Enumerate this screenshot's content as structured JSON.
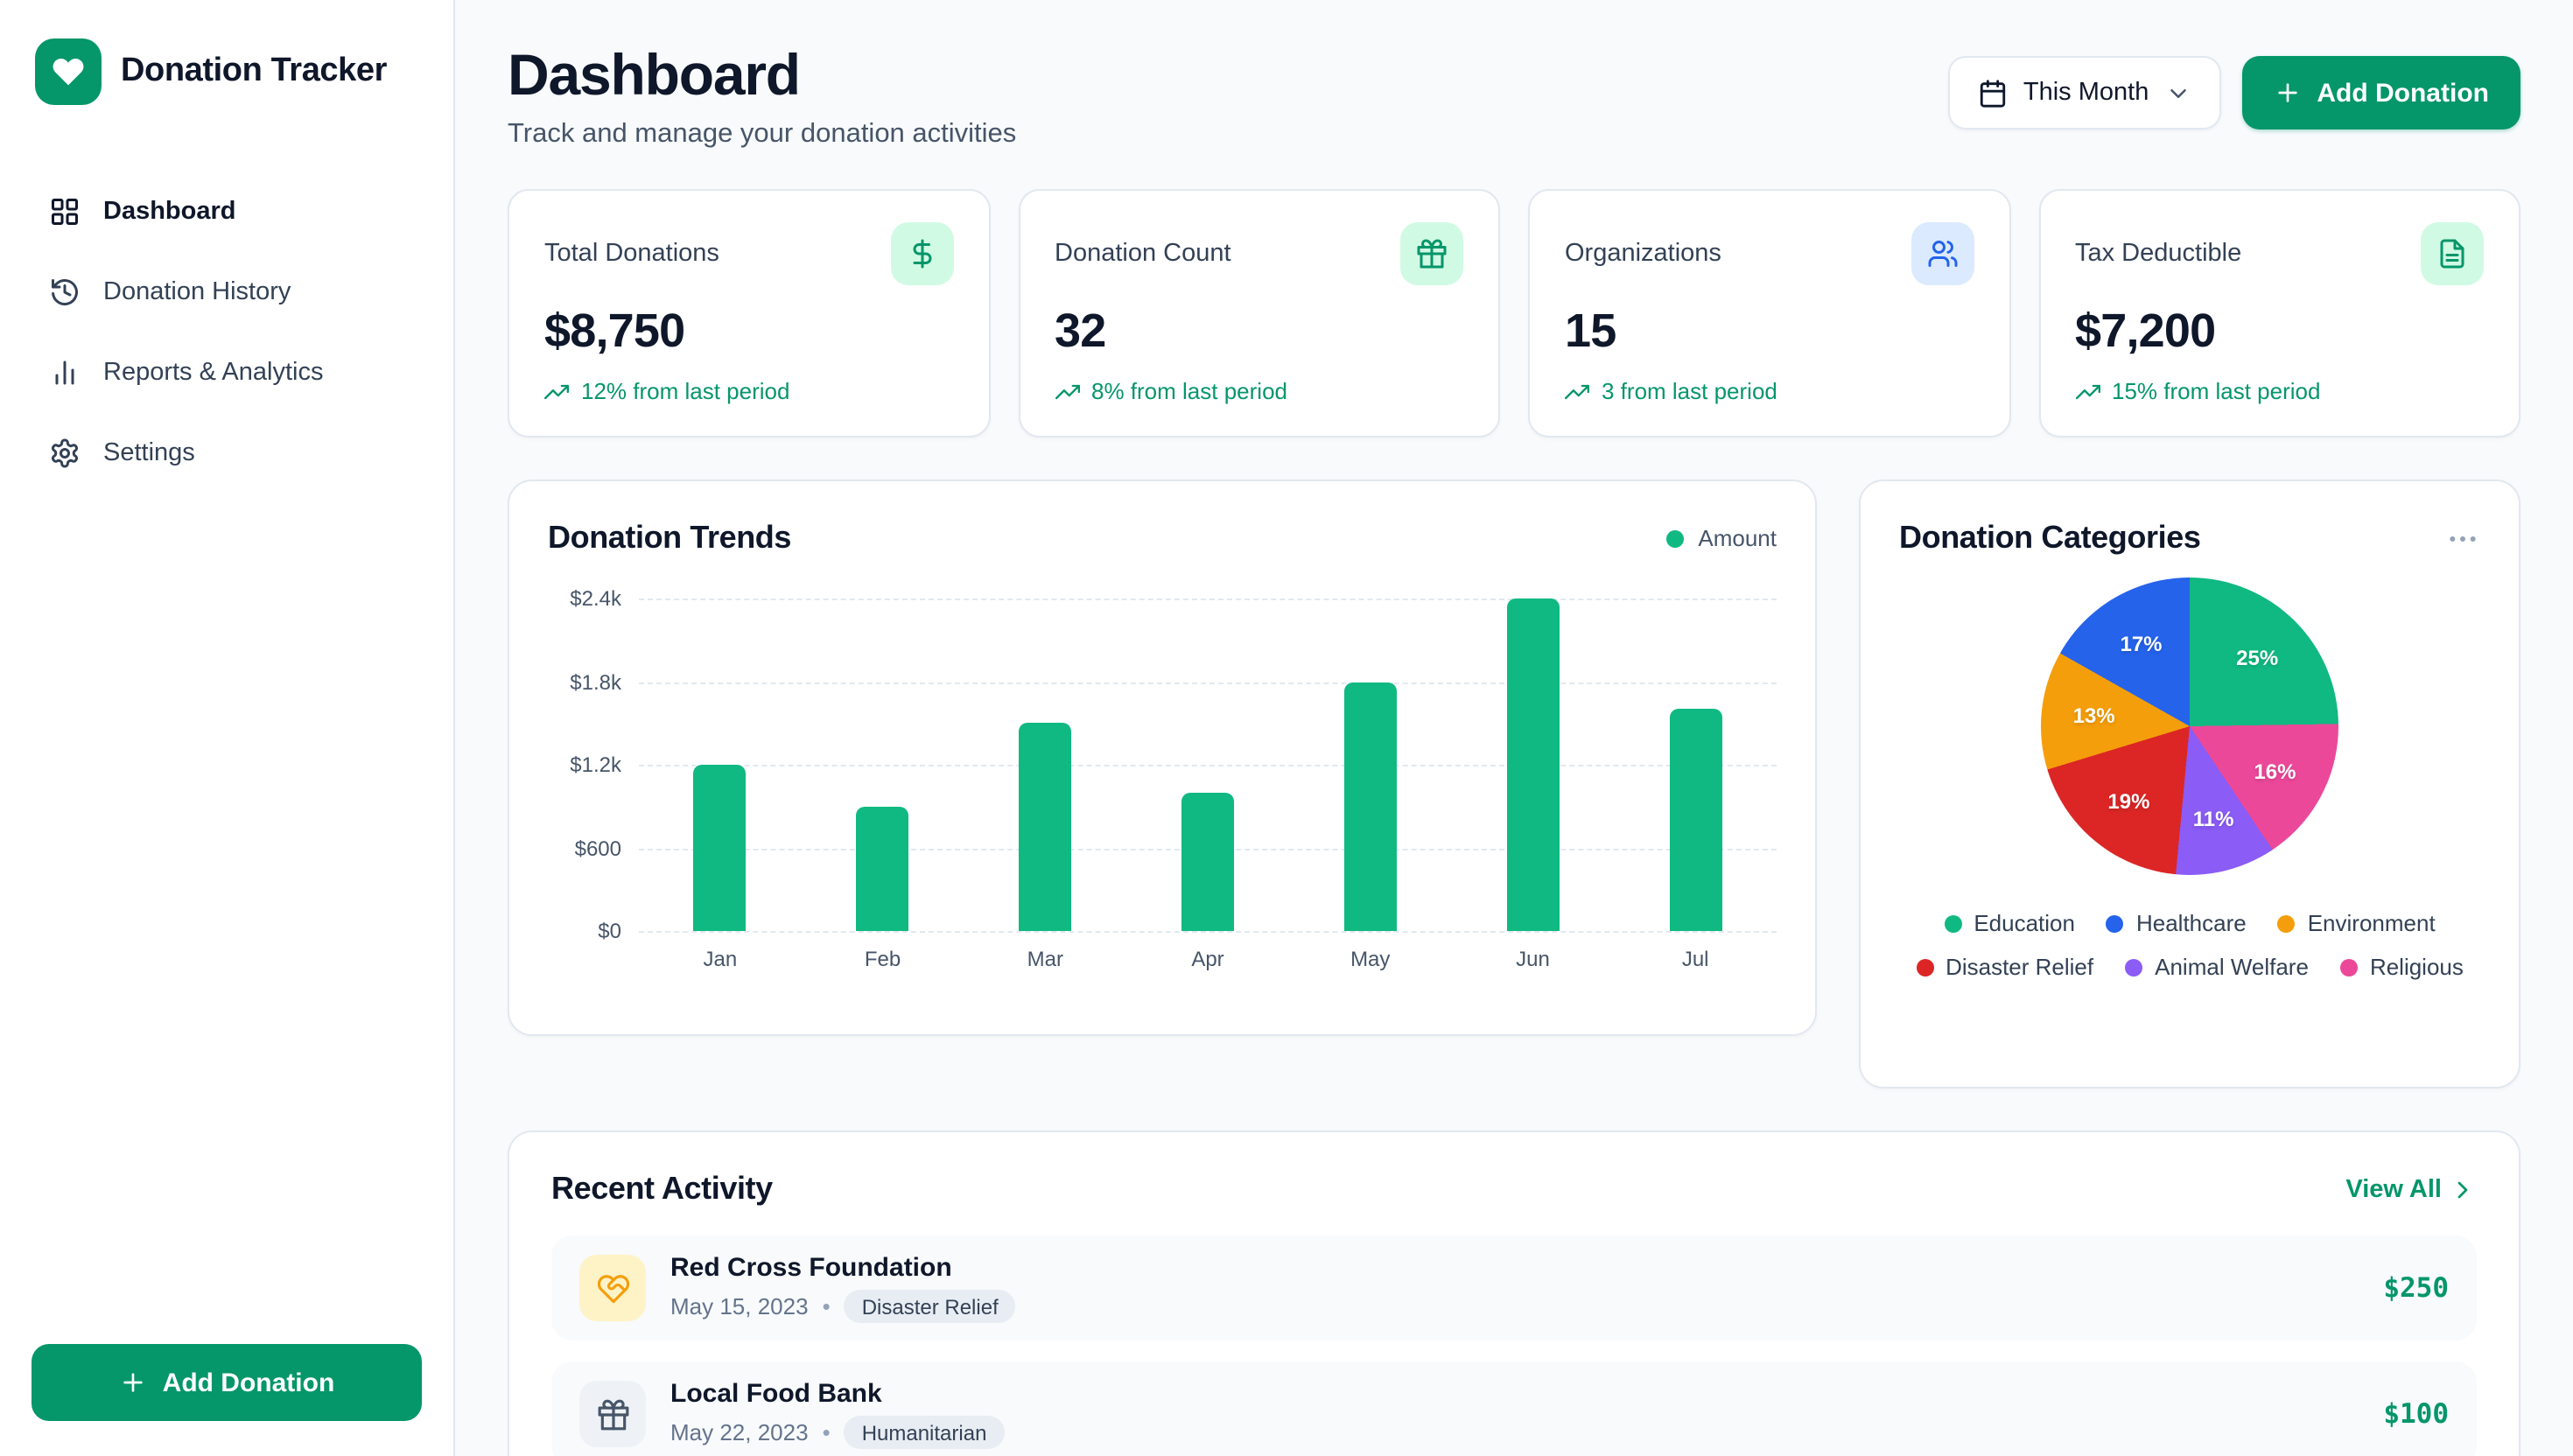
{
  "app": {
    "title": "Donation Tracker"
  },
  "sidebar": {
    "items": [
      {
        "label": "Dashboard"
      },
      {
        "label": "Donation History"
      },
      {
        "label": "Reports & Analytics"
      },
      {
        "label": "Settings"
      }
    ],
    "add_button_label": "Add Donation"
  },
  "header": {
    "title": "Dashboard",
    "subtitle": "Track and manage your donation activities",
    "period_selector_label": "This Month",
    "add_button_label": "Add Donation"
  },
  "stats": [
    {
      "label": "Total Donations",
      "value": "$8,750",
      "change": "12% from last period",
      "icon": "dollar-icon",
      "badge_color": "#d1fae5"
    },
    {
      "label": "Donation Count",
      "value": "32",
      "change": "8% from last period",
      "icon": "gift-icon",
      "badge_color": "#d1fae5"
    },
    {
      "label": "Organizations",
      "value": "15",
      "change": "3 from last period",
      "icon": "users-icon",
      "badge_color": "#dbeafe"
    },
    {
      "label": "Tax Deductible",
      "value": "$7,200",
      "change": "15% from last period",
      "icon": "file-text-icon",
      "badge_color": "#d1fae5"
    }
  ],
  "chart_data": [
    {
      "type": "bar",
      "title": "Donation Trends",
      "legend_label": "Amount",
      "legend_position": "top-right",
      "bar_color": "#10b981",
      "categories": [
        "Jan",
        "Feb",
        "Mar",
        "Apr",
        "May",
        "Jun",
        "Jul"
      ],
      "values": [
        1200,
        900,
        1500,
        1000,
        1800,
        2400,
        1600
      ],
      "ylim": [
        0,
        2400
      ],
      "yticks_top_to_bottom": [
        "$2.4k",
        "$1.8k",
        "$1.2k",
        "$600",
        "$0"
      ],
      "grid": true
    },
    {
      "type": "pie",
      "title": "Donation Categories",
      "legend_position": "bottom",
      "slices_clockwise_from_top": [
        {
          "label": "Education",
          "value": 25,
          "color": "#10b981"
        },
        {
          "label": "Religious",
          "value": 16,
          "color": "#ec4899"
        },
        {
          "label": "Animal Welfare",
          "value": 11,
          "color": "#8b5cf6"
        },
        {
          "label": "Disaster Relief",
          "value": 19,
          "color": "#dc2626"
        },
        {
          "label": "Environment",
          "value": 13,
          "color": "#f59e0b"
        },
        {
          "label": "Healthcare",
          "value": 17,
          "color": "#2563eb"
        }
      ],
      "legend": [
        {
          "label": "Education",
          "color": "#10b981"
        },
        {
          "label": "Healthcare",
          "color": "#2563eb"
        },
        {
          "label": "Environment",
          "color": "#f59e0b"
        },
        {
          "label": "Disaster Relief",
          "color": "#dc2626"
        },
        {
          "label": "Animal Welfare",
          "color": "#8b5cf6"
        },
        {
          "label": "Religious",
          "color": "#ec4899"
        }
      ]
    }
  ],
  "recent_activity": {
    "title": "Recent Activity",
    "view_all_label": "View All",
    "items": [
      {
        "name": "Red Cross Foundation",
        "date": "May 15, 2023",
        "category": "Disaster Relief",
        "amount": "$250"
      },
      {
        "name": "Local Food Bank",
        "date": "May 22, 2023",
        "category": "Humanitarian",
        "amount": "$100"
      }
    ]
  },
  "colors": {
    "primary_green": "#059669",
    "bar_green": "#10b981",
    "positive_change": "#059669",
    "organizations_blue": "#2563eb"
  }
}
